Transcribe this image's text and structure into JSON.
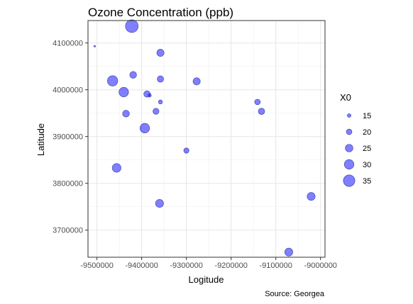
{
  "chart_data": {
    "type": "scatter",
    "title": "Ozone Concentration (ppb)",
    "xlabel": "Logitude",
    "ylabel": "Latitude",
    "caption": "Source: Georgea",
    "xlim": [
      -9520000,
      -8990000
    ],
    "ylim": [
      3642000,
      4148000
    ],
    "xticks": [
      -9500000,
      -9400000,
      -9300000,
      -9200000,
      -9100000,
      -9000000
    ],
    "xtick_labels": [
      "-9500000",
      "-9400000",
      "-9300000",
      "-9200000",
      "-9100000",
      "-9000000"
    ],
    "yticks": [
      3700000,
      3800000,
      3900000,
      4000000,
      4100000
    ],
    "ytick_labels": [
      "3700000",
      "3800000",
      "3900000",
      "4000000",
      "4100000"
    ],
    "grid": true,
    "legend": {
      "title": "X0",
      "position": "right",
      "values": [
        15,
        20,
        25,
        30,
        35
      ],
      "labels": [
        "15",
        "20",
        "25",
        "30",
        "35"
      ]
    },
    "size_range": [
      10,
      38
    ],
    "point_color": "#0000FF",
    "point_alpha": 0.5,
    "points": [
      {
        "x": -9505000,
        "y": 4093000,
        "size": 10
      },
      {
        "x": -9422000,
        "y": 4136000,
        "size": 38
      },
      {
        "x": -9358000,
        "y": 4079000,
        "size": 24
      },
      {
        "x": -9419000,
        "y": 4032000,
        "size": 23
      },
      {
        "x": -9465000,
        "y": 4019000,
        "size": 32
      },
      {
        "x": -9358000,
        "y": 4023000,
        "size": 22
      },
      {
        "x": -9277000,
        "y": 4018000,
        "size": 24
      },
      {
        "x": -9440000,
        "y": 3995000,
        "size": 30
      },
      {
        "x": -9388000,
        "y": 3991000,
        "size": 22
      },
      {
        "x": -9382000,
        "y": 3988000,
        "size": 14
      },
      {
        "x": -9358000,
        "y": 3974000,
        "size": 16
      },
      {
        "x": -9141000,
        "y": 3974000,
        "size": 20
      },
      {
        "x": -9132000,
        "y": 3954000,
        "size": 22
      },
      {
        "x": -9435000,
        "y": 3949000,
        "size": 23
      },
      {
        "x": -9368000,
        "y": 3954000,
        "size": 21
      },
      {
        "x": -9393000,
        "y": 3918000,
        "size": 30
      },
      {
        "x": -9300000,
        "y": 3870000,
        "size": 19
      },
      {
        "x": -9456000,
        "y": 3833000,
        "size": 28
      },
      {
        "x": -9360000,
        "y": 3757000,
        "size": 26
      },
      {
        "x": -9021000,
        "y": 3772000,
        "size": 26
      },
      {
        "x": -9071000,
        "y": 3653000,
        "size": 26
      }
    ]
  }
}
